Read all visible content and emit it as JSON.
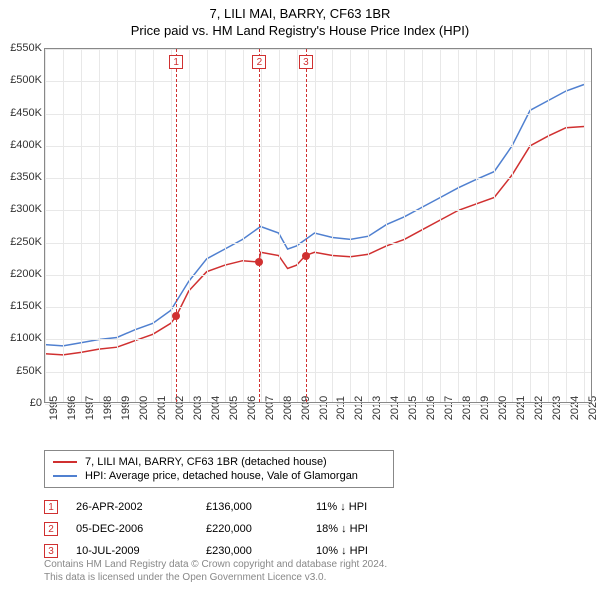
{
  "title": "7, LILI MAI, BARRY, CF63 1BR",
  "subtitle": "Price paid vs. HM Land Registry's House Price Index (HPI)",
  "chart": {
    "type": "line",
    "background_color": "#ffffff",
    "grid_color": "#e8e8e8",
    "border_color": "#888888",
    "x_axis": {
      "years": [
        1995,
        1996,
        1997,
        1998,
        1999,
        2000,
        2001,
        2002,
        2003,
        2004,
        2005,
        2006,
        2007,
        2008,
        2009,
        2010,
        2011,
        2012,
        2013,
        2014,
        2015,
        2016,
        2017,
        2018,
        2019,
        2020,
        2021,
        2022,
        2023,
        2024,
        2025
      ],
      "min": 1995,
      "max": 2025.5,
      "label_fontsize": 11,
      "label_rotation": -90
    },
    "y_axis": {
      "ticks": [
        0,
        50000,
        100000,
        150000,
        200000,
        250000,
        300000,
        350000,
        400000,
        450000,
        500000,
        550000
      ],
      "tick_labels": [
        "£0",
        "£50K",
        "£100K",
        "£150K",
        "£200K",
        "£250K",
        "£300K",
        "£350K",
        "£400K",
        "£450K",
        "£500K",
        "£550K"
      ],
      "min": 0,
      "max": 550000,
      "label_fontsize": 11
    },
    "series": [
      {
        "name": "7, LILI MAI, BARRY, CF63 1BR (detached house)",
        "color": "#d03030",
        "line_width": 1.5,
        "points": [
          [
            1995,
            78000
          ],
          [
            1996,
            76000
          ],
          [
            1997,
            80000
          ],
          [
            1998,
            85000
          ],
          [
            1999,
            88000
          ],
          [
            2000,
            98000
          ],
          [
            2001,
            108000
          ],
          [
            2002,
            125000
          ],
          [
            2002.3,
            136000
          ],
          [
            2003,
            175000
          ],
          [
            2004,
            205000
          ],
          [
            2005,
            215000
          ],
          [
            2006,
            222000
          ],
          [
            2006.9,
            220000
          ],
          [
            2007,
            235000
          ],
          [
            2008,
            230000
          ],
          [
            2008.5,
            210000
          ],
          [
            2009,
            215000
          ],
          [
            2009.5,
            230000
          ],
          [
            2010,
            235000
          ],
          [
            2011,
            230000
          ],
          [
            2012,
            228000
          ],
          [
            2013,
            232000
          ],
          [
            2014,
            245000
          ],
          [
            2015,
            255000
          ],
          [
            2016,
            270000
          ],
          [
            2017,
            285000
          ],
          [
            2018,
            300000
          ],
          [
            2019,
            310000
          ],
          [
            2020,
            320000
          ],
          [
            2021,
            355000
          ],
          [
            2022,
            400000
          ],
          [
            2023,
            415000
          ],
          [
            2024,
            428000
          ],
          [
            2025,
            430000
          ]
        ]
      },
      {
        "name": "HPI: Average price, detached house, Vale of Glamorgan",
        "color": "#5080d0",
        "line_width": 1.5,
        "points": [
          [
            1995,
            92000
          ],
          [
            1996,
            90000
          ],
          [
            1997,
            95000
          ],
          [
            1998,
            100000
          ],
          [
            1999,
            103000
          ],
          [
            2000,
            115000
          ],
          [
            2001,
            125000
          ],
          [
            2002,
            145000
          ],
          [
            2003,
            190000
          ],
          [
            2004,
            225000
          ],
          [
            2005,
            240000
          ],
          [
            2006,
            255000
          ],
          [
            2007,
            275000
          ],
          [
            2008,
            265000
          ],
          [
            2008.5,
            240000
          ],
          [
            2009,
            245000
          ],
          [
            2010,
            265000
          ],
          [
            2011,
            258000
          ],
          [
            2012,
            255000
          ],
          [
            2013,
            260000
          ],
          [
            2014,
            278000
          ],
          [
            2015,
            290000
          ],
          [
            2016,
            305000
          ],
          [
            2017,
            320000
          ],
          [
            2018,
            335000
          ],
          [
            2019,
            348000
          ],
          [
            2020,
            360000
          ],
          [
            2021,
            400000
          ],
          [
            2022,
            455000
          ],
          [
            2023,
            470000
          ],
          [
            2024,
            485000
          ],
          [
            2025,
            495000
          ]
        ]
      }
    ],
    "markers": [
      {
        "num": "1",
        "x": 2002.3,
        "y": 136000
      },
      {
        "num": "2",
        "x": 2006.93,
        "y": 220000
      },
      {
        "num": "3",
        "x": 2009.52,
        "y": 230000
      }
    ]
  },
  "legend": {
    "items": [
      {
        "label": "7, LILI MAI, BARRY, CF63 1BR (detached house)",
        "color": "#d03030"
      },
      {
        "label": "HPI: Average price, detached house, Vale of Glamorgan",
        "color": "#5080d0"
      }
    ]
  },
  "annotations": [
    {
      "num": "1",
      "date": "26-APR-2002",
      "price": "£136,000",
      "pct": "11% ↓ HPI"
    },
    {
      "num": "2",
      "date": "05-DEC-2006",
      "price": "£220,000",
      "pct": "18% ↓ HPI"
    },
    {
      "num": "3",
      "date": "10-JUL-2009",
      "price": "£230,000",
      "pct": "10% ↓ HPI"
    }
  ],
  "footer": {
    "line1": "Contains HM Land Registry data © Crown copyright and database right 2024.",
    "line2": "This data is licensed under the Open Government Licence v3.0."
  }
}
